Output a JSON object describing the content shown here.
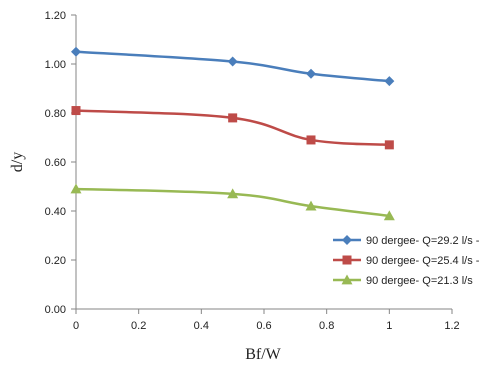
{
  "chart_data": {
    "type": "line",
    "xlabel": "Bf/W",
    "ylabel": "d/y",
    "xlim": [
      0,
      1.2
    ],
    "ylim": [
      0,
      1.2
    ],
    "xticks": [
      "0",
      "0.2",
      "0.4",
      "0.6",
      "0.8",
      "1",
      "1.2"
    ],
    "yticks": [
      "0.00",
      "0.20",
      "0.40",
      "0.60",
      "0.80",
      "1.00",
      "1.20"
    ],
    "grid": false,
    "legend_position": "bottom-right",
    "x": [
      0,
      0.5,
      0.75,
      1
    ],
    "series": [
      {
        "name": "90 dergee- Q=29.2 l/s -",
        "values": [
          1.05,
          1.01,
          0.96,
          0.93
        ],
        "color": "#4a7ebb",
        "marker": "diamond"
      },
      {
        "name": "90 dergee- Q=25.4 l/s -",
        "values": [
          0.81,
          0.78,
          0.69,
          0.67
        ],
        "color": "#be4b48",
        "marker": "square"
      },
      {
        "name": "90 dergee- Q=21.3 l/s",
        "values": [
          0.49,
          0.47,
          0.42,
          0.38
        ],
        "color": "#98b954",
        "marker": "triangle"
      }
    ]
  }
}
